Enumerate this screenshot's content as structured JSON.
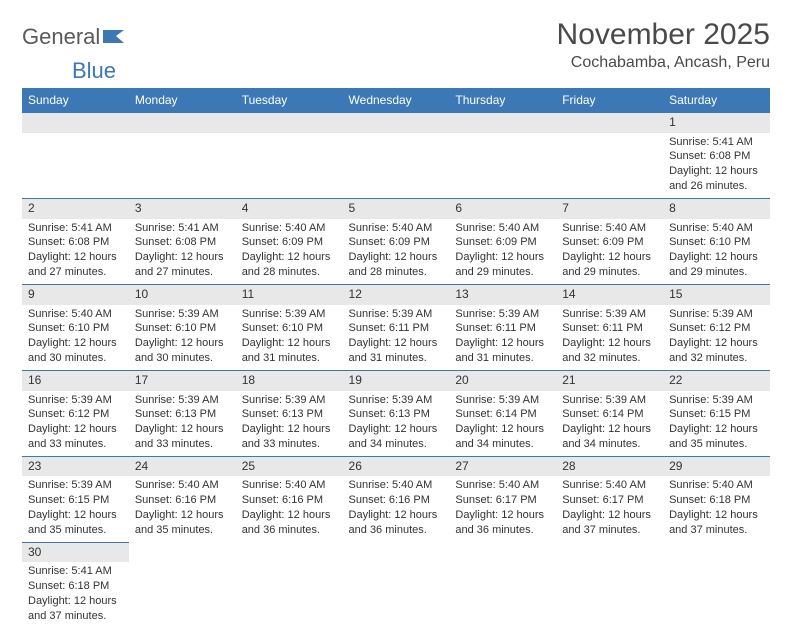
{
  "logo": {
    "part1": "General",
    "part2": "Blue"
  },
  "header": {
    "month": "November 2025",
    "location": "Cochabamba, Ancash, Peru"
  },
  "colors": {
    "header_bg": "#3b78b5",
    "header_text": "#ffffff",
    "daynum_bg": "#e8e8e8",
    "cell_border": "#3b78b5",
    "text": "#333333"
  },
  "typography": {
    "month_fontsize": 30,
    "location_fontsize": 16,
    "weekday_fontsize": 12,
    "cell_fontsize": 11
  },
  "weekdays": [
    "Sunday",
    "Monday",
    "Tuesday",
    "Wednesday",
    "Thursday",
    "Friday",
    "Saturday"
  ],
  "weeks": [
    [
      null,
      null,
      null,
      null,
      null,
      null,
      {
        "day": "1",
        "sunrise": "5:41 AM",
        "sunset": "6:08 PM",
        "daylight": "12 hours and 26 minutes."
      }
    ],
    [
      {
        "day": "2",
        "sunrise": "5:41 AM",
        "sunset": "6:08 PM",
        "daylight": "12 hours and 27 minutes."
      },
      {
        "day": "3",
        "sunrise": "5:41 AM",
        "sunset": "6:08 PM",
        "daylight": "12 hours and 27 minutes."
      },
      {
        "day": "4",
        "sunrise": "5:40 AM",
        "sunset": "6:09 PM",
        "daylight": "12 hours and 28 minutes."
      },
      {
        "day": "5",
        "sunrise": "5:40 AM",
        "sunset": "6:09 PM",
        "daylight": "12 hours and 28 minutes."
      },
      {
        "day": "6",
        "sunrise": "5:40 AM",
        "sunset": "6:09 PM",
        "daylight": "12 hours and 29 minutes."
      },
      {
        "day": "7",
        "sunrise": "5:40 AM",
        "sunset": "6:09 PM",
        "daylight": "12 hours and 29 minutes."
      },
      {
        "day": "8",
        "sunrise": "5:40 AM",
        "sunset": "6:10 PM",
        "daylight": "12 hours and 29 minutes."
      }
    ],
    [
      {
        "day": "9",
        "sunrise": "5:40 AM",
        "sunset": "6:10 PM",
        "daylight": "12 hours and 30 minutes."
      },
      {
        "day": "10",
        "sunrise": "5:39 AM",
        "sunset": "6:10 PM",
        "daylight": "12 hours and 30 minutes."
      },
      {
        "day": "11",
        "sunrise": "5:39 AM",
        "sunset": "6:10 PM",
        "daylight": "12 hours and 31 minutes."
      },
      {
        "day": "12",
        "sunrise": "5:39 AM",
        "sunset": "6:11 PM",
        "daylight": "12 hours and 31 minutes."
      },
      {
        "day": "13",
        "sunrise": "5:39 AM",
        "sunset": "6:11 PM",
        "daylight": "12 hours and 31 minutes."
      },
      {
        "day": "14",
        "sunrise": "5:39 AM",
        "sunset": "6:11 PM",
        "daylight": "12 hours and 32 minutes."
      },
      {
        "day": "15",
        "sunrise": "5:39 AM",
        "sunset": "6:12 PM",
        "daylight": "12 hours and 32 minutes."
      }
    ],
    [
      {
        "day": "16",
        "sunrise": "5:39 AM",
        "sunset": "6:12 PM",
        "daylight": "12 hours and 33 minutes."
      },
      {
        "day": "17",
        "sunrise": "5:39 AM",
        "sunset": "6:13 PM",
        "daylight": "12 hours and 33 minutes."
      },
      {
        "day": "18",
        "sunrise": "5:39 AM",
        "sunset": "6:13 PM",
        "daylight": "12 hours and 33 minutes."
      },
      {
        "day": "19",
        "sunrise": "5:39 AM",
        "sunset": "6:13 PM",
        "daylight": "12 hours and 34 minutes."
      },
      {
        "day": "20",
        "sunrise": "5:39 AM",
        "sunset": "6:14 PM",
        "daylight": "12 hours and 34 minutes."
      },
      {
        "day": "21",
        "sunrise": "5:39 AM",
        "sunset": "6:14 PM",
        "daylight": "12 hours and 34 minutes."
      },
      {
        "day": "22",
        "sunrise": "5:39 AM",
        "sunset": "6:15 PM",
        "daylight": "12 hours and 35 minutes."
      }
    ],
    [
      {
        "day": "23",
        "sunrise": "5:39 AM",
        "sunset": "6:15 PM",
        "daylight": "12 hours and 35 minutes."
      },
      {
        "day": "24",
        "sunrise": "5:40 AM",
        "sunset": "6:16 PM",
        "daylight": "12 hours and 35 minutes."
      },
      {
        "day": "25",
        "sunrise": "5:40 AM",
        "sunset": "6:16 PM",
        "daylight": "12 hours and 36 minutes."
      },
      {
        "day": "26",
        "sunrise": "5:40 AM",
        "sunset": "6:16 PM",
        "daylight": "12 hours and 36 minutes."
      },
      {
        "day": "27",
        "sunrise": "5:40 AM",
        "sunset": "6:17 PM",
        "daylight": "12 hours and 36 minutes."
      },
      {
        "day": "28",
        "sunrise": "5:40 AM",
        "sunset": "6:17 PM",
        "daylight": "12 hours and 37 minutes."
      },
      {
        "day": "29",
        "sunrise": "5:40 AM",
        "sunset": "6:18 PM",
        "daylight": "12 hours and 37 minutes."
      }
    ],
    [
      {
        "day": "30",
        "sunrise": "5:41 AM",
        "sunset": "6:18 PM",
        "daylight": "12 hours and 37 minutes."
      },
      null,
      null,
      null,
      null,
      null,
      null
    ]
  ],
  "labels": {
    "sunrise": "Sunrise: ",
    "sunset": "Sunset: ",
    "daylight": "Daylight: "
  }
}
